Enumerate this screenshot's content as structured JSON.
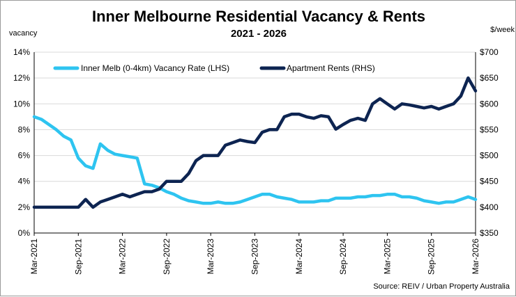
{
  "chart_data": {
    "type": "line",
    "title": "Inner Melbourne Residential Vacancy & Rents",
    "subtitle": "2021 - 2026",
    "left_axis_unit": "vacancy",
    "right_axis_unit": "$/week",
    "source": "Source: REIV / Urban Property Australia",
    "left_ylim": [
      0,
      14
    ],
    "right_ylim": [
      350,
      700
    ],
    "left_ticks": [
      "0%",
      "2%",
      "4%",
      "6%",
      "8%",
      "10%",
      "12%",
      "14%"
    ],
    "right_ticks": [
      "$350",
      "$400",
      "$450",
      "$500",
      "$550",
      "$600",
      "$650",
      "$700"
    ],
    "x_tick_labels": [
      "Mar-2021",
      "Sep-2021",
      "Mar-2022",
      "Sep-2022",
      "Mar-2023",
      "Sep-2023",
      "Mar-2024",
      "Sep-2024",
      "Mar-2025",
      "Sep-2025",
      "Mar-2026"
    ],
    "xlim": [
      0,
      60
    ],
    "x_tick_positions": [
      0,
      6,
      12,
      18,
      24,
      30,
      36,
      42,
      48,
      54,
      60
    ],
    "grid": "horizontal",
    "legend_position": "top",
    "series": [
      {
        "name": "Inner Melb (0-4km) Vacancy Rate (LHS)",
        "axis": "left",
        "color": "#2ec4f0",
        "x": [
          0,
          1,
          2,
          3,
          4,
          5,
          6,
          7,
          8,
          9,
          10,
          11,
          12,
          13,
          14,
          15,
          16,
          17,
          18,
          19,
          20,
          21,
          22,
          23,
          24,
          25,
          26,
          27,
          28,
          29,
          30,
          31,
          32,
          33,
          34,
          35,
          36,
          37,
          38,
          39,
          40,
          41,
          42,
          43,
          44,
          45,
          46,
          47,
          48,
          49,
          50,
          51,
          52,
          53,
          54,
          55,
          56,
          57,
          58,
          59,
          60
        ],
        "y": [
          9.0,
          8.8,
          8.4,
          8.0,
          7.5,
          7.2,
          5.8,
          5.2,
          5.0,
          6.9,
          6.4,
          6.1,
          6.0,
          5.9,
          5.8,
          3.8,
          3.7,
          3.5,
          3.2,
          3.0,
          2.7,
          2.5,
          2.4,
          2.3,
          2.3,
          2.4,
          2.3,
          2.3,
          2.4,
          2.6,
          2.8,
          3.0,
          3.0,
          2.8,
          2.7,
          2.6,
          2.4,
          2.4,
          2.4,
          2.5,
          2.5,
          2.7,
          2.7,
          2.7,
          2.8,
          2.8,
          2.9,
          2.9,
          3.0,
          3.0,
          2.8,
          2.8,
          2.7,
          2.5,
          2.4,
          2.3,
          2.4,
          2.4,
          2.6,
          2.8,
          2.6
        ]
      },
      {
        "name": "Apartment Rents (RHS)",
        "axis": "right",
        "color": "#0d2451",
        "x": [
          0,
          1,
          2,
          3,
          4,
          5,
          6,
          7,
          8,
          9,
          10,
          11,
          12,
          13,
          14,
          15,
          16,
          17,
          18,
          19,
          20,
          21,
          22,
          23,
          24,
          25,
          26,
          27,
          28,
          29,
          30,
          31,
          32,
          33,
          34,
          35,
          36,
          37,
          38,
          39,
          40,
          41,
          42,
          43,
          44,
          45,
          46,
          47,
          48,
          49,
          50,
          51,
          52,
          53,
          54,
          55,
          56,
          57,
          58,
          59,
          60
        ],
        "y": [
          400,
          400,
          400,
          400,
          400,
          400,
          400,
          415,
          400,
          410,
          415,
          420,
          425,
          420,
          425,
          430,
          430,
          435,
          450,
          450,
          450,
          465,
          490,
          500,
          500,
          500,
          520,
          525,
          530,
          527,
          525,
          545,
          550,
          550,
          575,
          580,
          580,
          575,
          572,
          577,
          575,
          551,
          560,
          568,
          572,
          568,
          600,
          610,
          600,
          590,
          600,
          598,
          595,
          592,
          595,
          590,
          595,
          600,
          615,
          650,
          625
        ]
      }
    ]
  }
}
